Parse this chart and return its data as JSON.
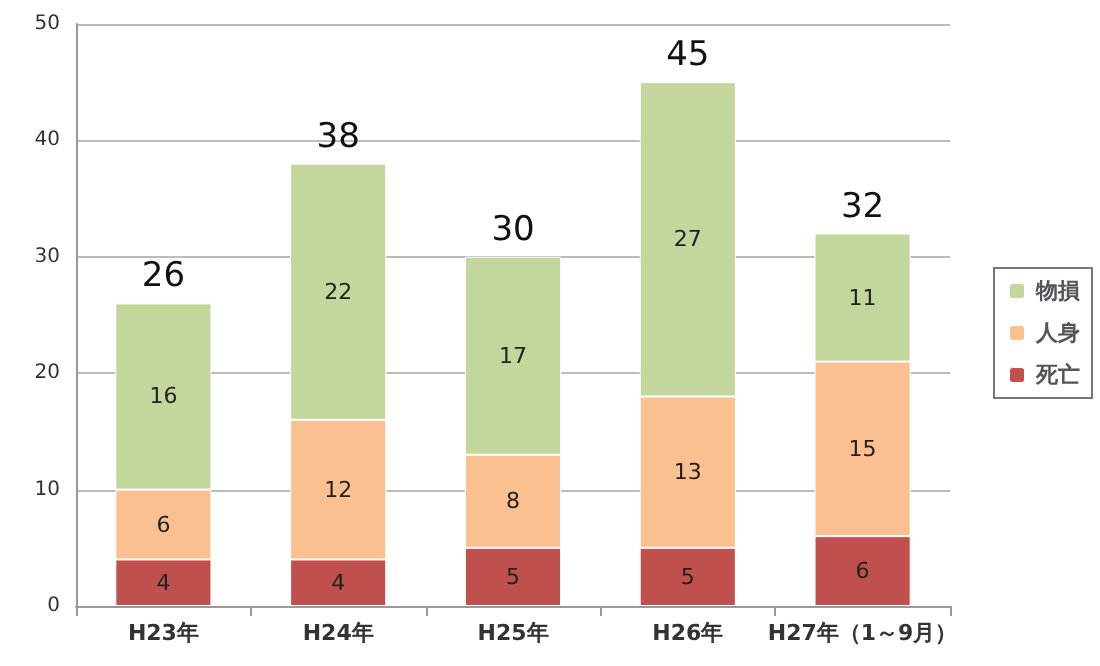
{
  "chart_data": {
    "type": "bar",
    "stacked": true,
    "categories": [
      "H23年",
      "H24年",
      "H25年",
      "H26年",
      "H27年（1～9月）"
    ],
    "series": [
      {
        "name": "死亡",
        "color": "#c0504d",
        "values": [
          4,
          4,
          5,
          5,
          6
        ]
      },
      {
        "name": "人身",
        "color": "#fac090",
        "values": [
          6,
          12,
          8,
          13,
          15
        ]
      },
      {
        "name": "物損",
        "color": "#c3d69b",
        "values": [
          16,
          22,
          17,
          27,
          11
        ]
      }
    ],
    "totals": [
      "26",
      "38",
      "30",
      "45",
      "32"
    ],
    "data_labels": true,
    "ylim": [
      0,
      50
    ],
    "yticks": [
      0,
      10,
      20,
      30,
      40,
      50
    ],
    "grid": "y",
    "legend": "right"
  }
}
